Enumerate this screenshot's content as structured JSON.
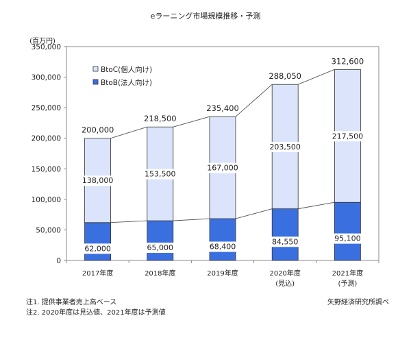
{
  "chart_data": {
    "type": "bar",
    "stacked": true,
    "title": "eラーニング市場規模推移・予測",
    "ylabel": "(百万円)",
    "ylim": [
      0,
      350000
    ],
    "yticks": [
      0,
      50000,
      100000,
      150000,
      200000,
      250000,
      300000,
      350000
    ],
    "ytick_labels": [
      "0",
      "50,000",
      "100,000",
      "150,000",
      "200,000",
      "250,000",
      "300,000",
      "350,000"
    ],
    "grid": false,
    "legend_position": "top-left",
    "categories": [
      {
        "label": "2017年度",
        "sub": ""
      },
      {
        "label": "2018年度",
        "sub": ""
      },
      {
        "label": "2019年度",
        "sub": ""
      },
      {
        "label": "2020年度",
        "sub": "(見込)"
      },
      {
        "label": "2021年度",
        "sub": "(予測)"
      }
    ],
    "series": [
      {
        "name": "BtoB(法人向け)",
        "color": "#3a6fe0",
        "values": [
          62000,
          65000,
          68400,
          84550,
          95100
        ],
        "labels": [
          "62,000",
          "65,000",
          "68,400",
          "84,550",
          "95,100"
        ]
      },
      {
        "name": "BtoC(個人向け)",
        "color": "#dbe4fa",
        "values": [
          138000,
          153500,
          167000,
          203500,
          217500
        ],
        "labels": [
          "138,000",
          "153,500",
          "167,000",
          "203,500",
          "217,500"
        ]
      }
    ],
    "totals": [
      200000,
      218500,
      235400,
      288050,
      312600
    ],
    "total_labels": [
      "200,000",
      "218,500",
      "235,400",
      "288,050",
      "312,600"
    ]
  },
  "notes": {
    "note1": "注1. 提供事業者売上高ベース",
    "note2": "注2. 2020年度は見込値、2021年度は予測値",
    "source": "矢野経済研究所調べ"
  }
}
